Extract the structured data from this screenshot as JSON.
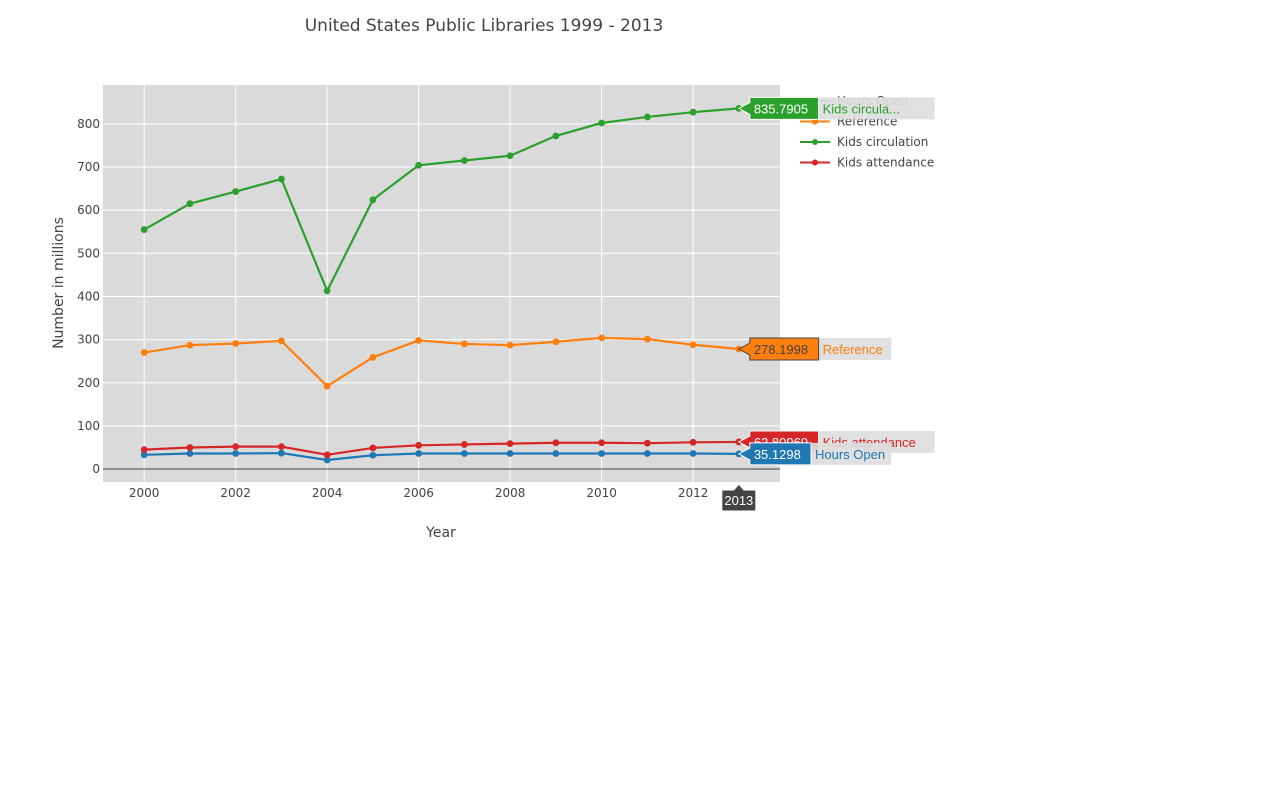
{
  "chart_data": {
    "type": "line",
    "title": "United States Public Libraries 1999 - 2013",
    "xlabel": "Year",
    "ylabel": "Number in millions",
    "xlim": [
      1999.1,
      2013.9
    ],
    "ylim": [
      -30,
      890
    ],
    "xticks": [
      2000,
      2002,
      2004,
      2006,
      2008,
      2010,
      2012
    ],
    "yticks": [
      0,
      100,
      200,
      300,
      400,
      500,
      600,
      700,
      800
    ],
    "grid": true,
    "legend_position": "top-right",
    "x": [
      2000,
      2001,
      2002,
      2003,
      2004,
      2005,
      2006,
      2007,
      2008,
      2009,
      2010,
      2011,
      2012,
      2013
    ],
    "series": [
      {
        "name": "Hours Open",
        "color": "#1f77b4",
        "values": [
          33,
          36,
          36,
          37,
          21,
          32,
          36,
          36,
          36,
          36,
          36,
          36,
          36,
          35.1298
        ]
      },
      {
        "name": "Reference",
        "color": "#ff7f0e",
        "values": [
          270,
          287,
          291,
          297,
          192,
          259,
          298,
          290,
          287,
          295,
          304,
          301,
          288,
          278.1998
        ]
      },
      {
        "name": "Kids circulation",
        "color": "#2ca02c",
        "values": [
          555,
          615,
          643,
          672,
          413,
          624,
          704,
          715,
          726,
          772,
          802,
          816,
          827,
          835.7905
        ]
      },
      {
        "name": "Kids attendance",
        "color": "#d62728",
        "values": [
          45,
          50,
          52,
          52,
          33,
          49,
          55,
          57,
          59,
          61,
          61,
          60,
          62,
          62.80969
        ]
      }
    ],
    "hover": {
      "x_label": "2013",
      "labels": [
        {
          "series": "Kids circulation",
          "value": "835.7905",
          "name": "Kids circula..."
        },
        {
          "series": "Reference",
          "value": "278.1998",
          "name": "Reference"
        },
        {
          "series": "Kids attendance",
          "value": "62.80969",
          "name": "Kids attendance"
        },
        {
          "series": "Hours Open",
          "value": "35.1298",
          "name": "Hours Open"
        }
      ]
    }
  },
  "colors": {
    "plot_background": "#dadada",
    "grid": "#ffffff",
    "zero_line": "#444444",
    "text": "#444444",
    "hover_x_box": "#444444"
  }
}
